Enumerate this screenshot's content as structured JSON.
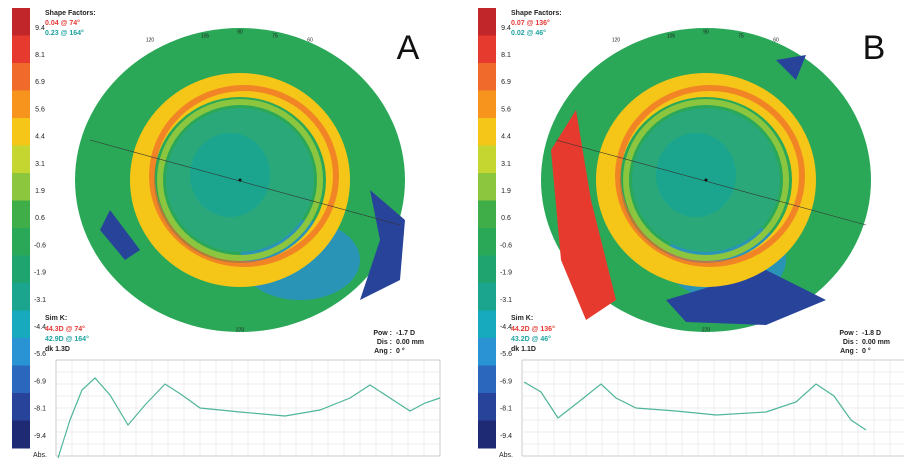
{
  "panels": [
    {
      "letter": "A",
      "shape_factors": {
        "title": "Shape Factors:",
        "lines": [
          "0.04 @ 74°",
          "0.23 @ 164°"
        ]
      },
      "scale": [
        9.4,
        8.1,
        6.9,
        5.6,
        4.4,
        3.1,
        1.9,
        0.6,
        -0.6,
        -1.9,
        -3.1,
        -4.4,
        -5.6,
        -6.9,
        -8.1,
        -9.4
      ],
      "scale_end": "Abs.",
      "sim_k": {
        "title": "Sim K:",
        "lines": [
          "44.3D @ 74°",
          "42.9D @ 164°"
        ],
        "dk": "dk 1.3D"
      },
      "readout": [
        {
          "label": "Pow :",
          "value": "-1.7 D"
        },
        {
          "label": "Dis :",
          "value": "0.00 mm"
        },
        {
          "label": "Ang :",
          "value": "0 °"
        }
      ],
      "top_angles": [
        "120",
        "105",
        "90",
        "75",
        "60"
      ],
      "bottom_angle": "270"
    },
    {
      "letter": "B",
      "shape_factors": {
        "title": "Shape Factors:",
        "lines": [
          "0.07 @ 136°",
          "0.02 @ 46°"
        ]
      },
      "scale": [
        9.4,
        8.1,
        6.9,
        5.6,
        4.4,
        3.1,
        1.9,
        0.6,
        -0.6,
        -1.9,
        -3.1,
        -4.4,
        -5.6,
        -6.9,
        -8.1,
        -9.4
      ],
      "scale_end": "Abs.",
      "sim_k": {
        "title": "Sim K:",
        "lines": [
          "44.2D @ 136°",
          "43.2D @ 46°"
        ],
        "dk": "dk 1.1D"
      },
      "readout": [
        {
          "label": "Pow :",
          "value": "-1.8 D"
        },
        {
          "label": "Dis :",
          "value": "0.00 mm"
        },
        {
          "label": "Ang :",
          "value": "0 °"
        }
      ],
      "top_angles": [
        "120",
        "105",
        "90",
        "75",
        "60"
      ],
      "bottom_angle": "270"
    }
  ]
}
